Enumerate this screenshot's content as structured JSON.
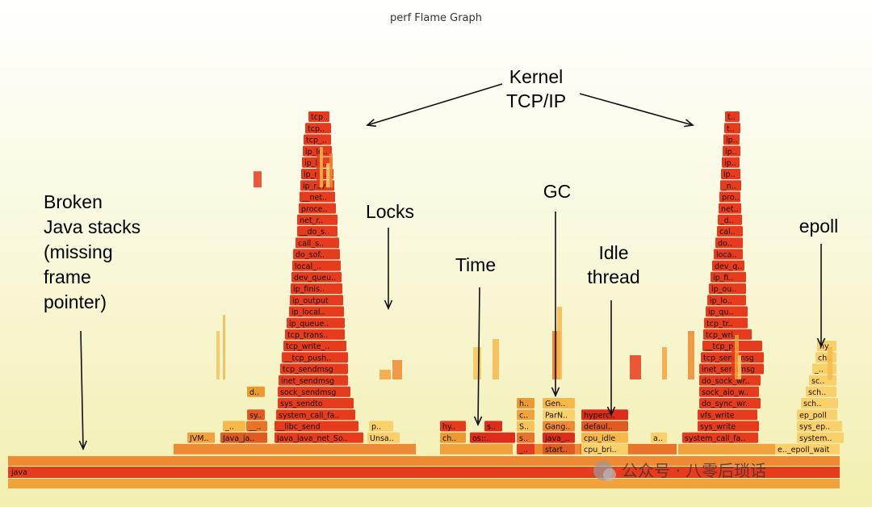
{
  "chart_data": {
    "type": "flamegraph",
    "title": "perf Flame Graph",
    "root": "java",
    "frames": [
      {
        "name": "JVM..",
        "stack": "broken-java",
        "depth": 1
      },
      {
        "name": "Java_ja..",
        "stack": "broken-java",
        "depth": 1
      },
      {
        "name": "d..",
        "stack": "broken-java",
        "depth": 5
      },
      {
        "name": "sy..",
        "stack": "broken-java",
        "depth": 3
      },
      {
        "name": "_..",
        "stack": "broken-java",
        "depth": 2
      },
      {
        "name": "__..",
        "stack": "broken-java",
        "depth": 2
      },
      {
        "name": "Java_java_net_So..",
        "stack": "kernel-tcp-left",
        "depth": 1
      },
      {
        "name": "__libc_send",
        "stack": "kernel-tcp-left",
        "depth": 2
      },
      {
        "name": "system_call_fa..",
        "stack": "kernel-tcp-left",
        "depth": 3
      },
      {
        "name": "sys_sendto",
        "stack": "kernel-tcp-left",
        "depth": 4
      },
      {
        "name": "sock_sendmsg",
        "stack": "kernel-tcp-left",
        "depth": 5
      },
      {
        "name": "inet_sendmsg",
        "stack": "kernel-tcp-left",
        "depth": 6
      },
      {
        "name": "tcp_sendmsg",
        "stack": "kernel-tcp-left",
        "depth": 7
      },
      {
        "name": "__tcp_push..",
        "stack": "kernel-tcp-left",
        "depth": 8
      },
      {
        "name": "tcp_write_..",
        "stack": "kernel-tcp-left",
        "depth": 9
      },
      {
        "name": "tcp_trans..",
        "stack": "kernel-tcp-left",
        "depth": 10
      },
      {
        "name": "ip_queue..",
        "stack": "kernel-tcp-left",
        "depth": 11
      },
      {
        "name": "ip_local..",
        "stack": "kernel-tcp-left",
        "depth": 12
      },
      {
        "name": "ip_output",
        "stack": "kernel-tcp-left",
        "depth": 13
      },
      {
        "name": "ip_finis..",
        "stack": "kernel-tcp-left",
        "depth": 14
      },
      {
        "name": "dev_queu..",
        "stack": "kernel-tcp-left",
        "depth": 15
      },
      {
        "name": "local_..",
        "stack": "kernel-tcp-left",
        "depth": 16
      },
      {
        "name": "do_sof..",
        "stack": "kernel-tcp-left",
        "depth": 17
      },
      {
        "name": "call_s..",
        "stack": "kernel-tcp-left",
        "depth": 18
      },
      {
        "name": "__do_s..",
        "stack": "kernel-tcp-left",
        "depth": 19
      },
      {
        "name": "net_r..",
        "stack": "kernel-tcp-left",
        "depth": 20
      },
      {
        "name": "proce..",
        "stack": "kernel-tcp-left",
        "depth": 21
      },
      {
        "name": "__net..",
        "stack": "kernel-tcp-left",
        "depth": 22
      },
      {
        "name": "ip_rcv",
        "stack": "kernel-tcp-left",
        "depth": 23
      },
      {
        "name": "ip_rc..",
        "stack": "kernel-tcp-left",
        "depth": 24
      },
      {
        "name": "ip_lo..",
        "stack": "kernel-tcp-left",
        "depth": 25
      },
      {
        "name": "ip_lo..",
        "stack": "kernel-tcp-left",
        "depth": 26
      },
      {
        "name": "tcp_..",
        "stack": "kernel-tcp-left",
        "depth": 27
      },
      {
        "name": "tcp..",
        "stack": "kernel-tcp-left",
        "depth": 28
      },
      {
        "name": "tcp..",
        "stack": "kernel-tcp-left",
        "depth": 29
      },
      {
        "name": "Unsa..",
        "stack": "locks",
        "depth": 1
      },
      {
        "name": "p..",
        "stack": "locks",
        "depth": 2
      },
      {
        "name": "hy..",
        "stack": "time",
        "depth": 2
      },
      {
        "name": "ch..",
        "stack": "time",
        "depth": 1
      },
      {
        "name": "os::..",
        "stack": "time",
        "depth": 1
      },
      {
        "name": "s..",
        "stack": "time",
        "depth": 2
      },
      {
        "name": "h..",
        "stack": "gc",
        "depth": 4
      },
      {
        "name": "c..",
        "stack": "gc",
        "depth": 3
      },
      {
        "name": "S..",
        "stack": "gc",
        "depth": 2
      },
      {
        "name": "s..",
        "stack": "gc",
        "depth": 1
      },
      {
        "name": "_..",
        "stack": "gc",
        "depth": 0
      },
      {
        "name": "Gen..",
        "stack": "gc",
        "depth": 4
      },
      {
        "name": "ParN..",
        "stack": "gc",
        "depth": 3
      },
      {
        "name": "Gang..",
        "stack": "gc",
        "depth": 2
      },
      {
        "name": "java_..",
        "stack": "gc",
        "depth": 1
      },
      {
        "name": "start..",
        "stack": "gc",
        "depth": 0
      },
      {
        "name": "hyperc..",
        "stack": "idle",
        "depth": 3
      },
      {
        "name": "defaul..",
        "stack": "idle",
        "depth": 2
      },
      {
        "name": "cpu_idle",
        "stack": "idle",
        "depth": 1
      },
      {
        "name": "cpu_bri..",
        "stack": "idle",
        "depth": 0
      },
      {
        "name": "a..",
        "stack": "idle",
        "depth": 1
      },
      {
        "name": "system_call_fa..",
        "stack": "kernel-tcp-right",
        "depth": 1
      },
      {
        "name": "sys_write",
        "stack": "kernel-tcp-right",
        "depth": 2
      },
      {
        "name": "vfs_write",
        "stack": "kernel-tcp-right",
        "depth": 3
      },
      {
        "name": "do_sync_wr..",
        "stack": "kernel-tcp-right",
        "depth": 4
      },
      {
        "name": "sock_aio_w..",
        "stack": "kernel-tcp-right",
        "depth": 5
      },
      {
        "name": "do_sock_wr..",
        "stack": "kernel-tcp-right",
        "depth": 6
      },
      {
        "name": "inet_sendmsg",
        "stack": "kernel-tcp-right",
        "depth": 7
      },
      {
        "name": "tcp_sendmsg",
        "stack": "kernel-tcp-right",
        "depth": 8
      },
      {
        "name": "__tcp_p..",
        "stack": "kernel-tcp-right",
        "depth": 9
      },
      {
        "name": "tcp_wri..",
        "stack": "kernel-tcp-right",
        "depth": 10
      },
      {
        "name": "tcp_tr..",
        "stack": "kernel-tcp-right",
        "depth": 11
      },
      {
        "name": "ip_qu..",
        "stack": "kernel-tcp-right",
        "depth": 12
      },
      {
        "name": "ip_lo..",
        "stack": "kernel-tcp-right",
        "depth": 13
      },
      {
        "name": "ip_ou..",
        "stack": "kernel-tcp-right",
        "depth": 14
      },
      {
        "name": "ip_fi..",
        "stack": "kernel-tcp-right",
        "depth": 15
      },
      {
        "name": "dev_q..",
        "stack": "kernel-tcp-right",
        "depth": 16
      },
      {
        "name": "loca..",
        "stack": "kernel-tcp-right",
        "depth": 17
      },
      {
        "name": "do..",
        "stack": "kernel-tcp-right",
        "depth": 18
      },
      {
        "name": "cal..",
        "stack": "kernel-tcp-right",
        "depth": 19
      },
      {
        "name": "_d..",
        "stack": "kernel-tcp-right",
        "depth": 20
      },
      {
        "name": "net..",
        "stack": "kernel-tcp-right",
        "depth": 21
      },
      {
        "name": "pro..",
        "stack": "kernel-tcp-right",
        "depth": 22
      },
      {
        "name": "_n..",
        "stack": "kernel-tcp-right",
        "depth": 23
      },
      {
        "name": "ip..",
        "stack": "kernel-tcp-right",
        "depth": 24
      },
      {
        "name": "ip..",
        "stack": "kernel-tcp-right",
        "depth": 25
      },
      {
        "name": "ip..",
        "stack": "kernel-tcp-right",
        "depth": 26
      },
      {
        "name": "ip..",
        "stack": "kernel-tcp-right",
        "depth": 27
      },
      {
        "name": "t..",
        "stack": "kernel-tcp-right",
        "depth": 28
      },
      {
        "name": "t..",
        "stack": "kernel-tcp-right",
        "depth": 29
      },
      {
        "name": "system..",
        "stack": "epoll",
        "depth": 1
      },
      {
        "name": "sys_ep..",
        "stack": "epoll",
        "depth": 2
      },
      {
        "name": "ep_poll",
        "stack": "epoll",
        "depth": 3
      },
      {
        "name": "sch..",
        "stack": "epoll",
        "depth": 4
      },
      {
        "name": "sch..",
        "stack": "epoll",
        "depth": 5
      },
      {
        "name": "sc..",
        "stack": "epoll",
        "depth": 6
      },
      {
        "name": "_..",
        "stack": "epoll",
        "depth": 7
      },
      {
        "name": "ch..",
        "stack": "epoll",
        "depth": 8
      },
      {
        "name": "hy..",
        "stack": "epoll",
        "depth": 9
      },
      {
        "name": "e.._epoll_wait",
        "stack": "epoll",
        "depth": 0
      }
    ],
    "annotations": [
      {
        "id": "kernel",
        "lines": [
          "Kernel",
          "TCP/IP"
        ]
      },
      {
        "id": "broken",
        "lines": [
          "Broken",
          "Java stacks",
          "(missing",
          "frame",
          "pointer)"
        ]
      },
      {
        "id": "locks",
        "lines": [
          "Locks"
        ]
      },
      {
        "id": "time",
        "lines": [
          "Time"
        ]
      },
      {
        "id": "gc",
        "lines": [
          "GC"
        ]
      },
      {
        "id": "idle",
        "lines": [
          "Idle",
          "thread"
        ]
      },
      {
        "id": "epoll",
        "lines": [
          "epoll"
        ]
      }
    ],
    "palette": [
      "#e05a21",
      "#e8742a",
      "#ee8a33",
      "#f2a23c",
      "#f7b84a",
      "#e63b1c",
      "#dc2c1b",
      "#f4c45a",
      "#fad06a",
      "#ea9a2e"
    ]
  },
  "watermark": "公众号 · 八零后琐话"
}
